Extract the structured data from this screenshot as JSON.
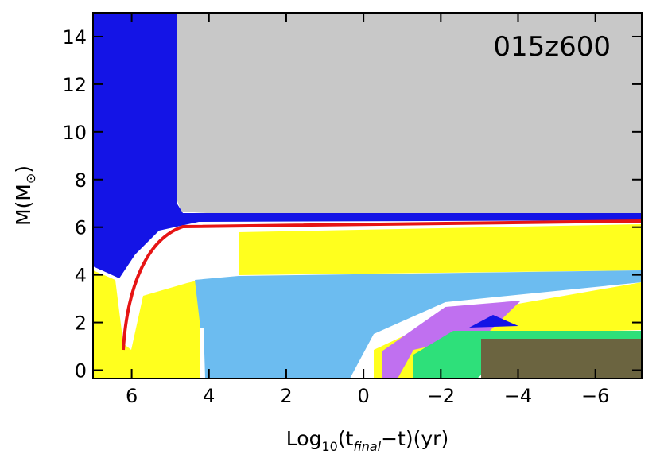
{
  "chart_data": {
    "type": "kippenhahn",
    "annotation": "015z600",
    "x_label": [
      "Log",
      "10",
      "(t",
      "final",
      "−t)(yr)"
    ],
    "y_label": [
      "M(M",
      "⊙",
      ")"
    ],
    "xlim": [
      7,
      -7.2
    ],
    "ylim": [
      -0.35,
      15
    ],
    "xticks": [
      6,
      4,
      2,
      0,
      {
        "value": -2,
        "label": "−2"
      },
      {
        "value": -4,
        "label": "−4"
      },
      {
        "value": -6,
        "label": "−6"
      }
    ],
    "yticks": [
      0,
      2,
      4,
      6,
      8,
      10,
      12,
      14
    ]
  }
}
